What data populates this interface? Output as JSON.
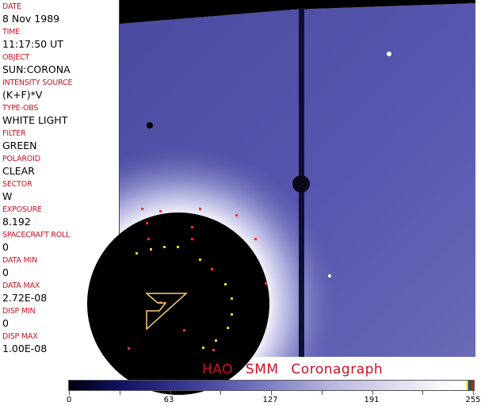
{
  "fields": [
    {
      "label": "DATE",
      "value": "8 Nov 1989"
    },
    {
      "label": "TIME",
      "value": "11:17:50 UT"
    },
    {
      "label": "OBJECT",
      "value": "SUN:CORONA"
    },
    {
      "label": "INTENSITY SOURCE",
      "value": "(K+F)*V"
    },
    {
      "label": "TYPE-OBS",
      "value": "WHITE LIGHT"
    },
    {
      "label": "FILTER",
      "value": "GREEN"
    },
    {
      "label": "POLAROID",
      "value": "CLEAR"
    },
    {
      "label": "SECTOR",
      "value": "W"
    },
    {
      "label": "EXPOSURE",
      "value": "8.192"
    },
    {
      "label": "SPACECRAFT ROLL",
      "value": "0"
    },
    {
      "label": "DATA MIN",
      "value": "0"
    },
    {
      "label": "DATA MAX",
      "value": "2.72E-08"
    },
    {
      "label": "DISP MIN",
      "value": "0"
    },
    {
      "label": "DISP MAX",
      "value": "1.00E-08"
    }
  ],
  "title": "HAO  SMM Coronagraph",
  "colorbar": {
    "ticks": [
      "0",
      "63",
      "127",
      "191",
      "255"
    ],
    "colors": {
      "low": "#000010",
      "mid": "#7878c4",
      "high": "#ffffff",
      "accent": "#cc1122"
    }
  }
}
